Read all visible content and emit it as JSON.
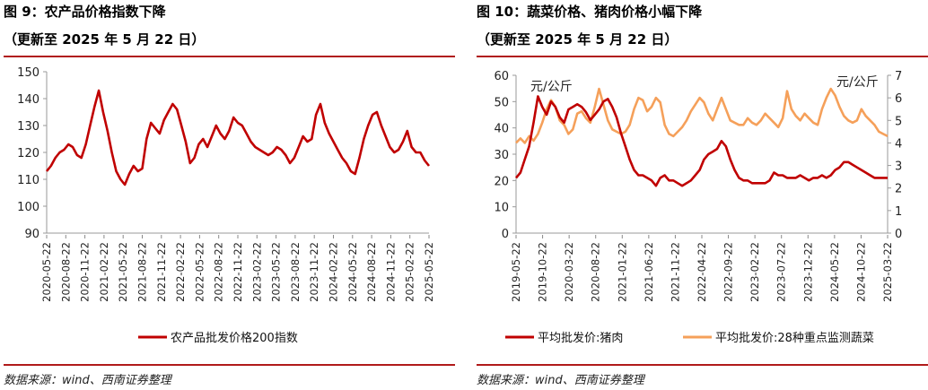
{
  "left": {
    "title": "图 9：农产品价格指数下降",
    "subtitle": "（更新至 2025 年 5 月 22 日）",
    "source": "数据来源：wind、西南证券整理",
    "chart_data": {
      "type": "line",
      "title": "农产品价格指数下降",
      "ylim": [
        90,
        150
      ],
      "yticks": [
        "150",
        "140",
        "130",
        "120",
        "110",
        "100",
        "90"
      ],
      "x_tick_labels": [
        "2020-05-22",
        "2020-08-22",
        "2020-11-22",
        "2021-02-22",
        "2021-05-22",
        "2021-08-22",
        "2021-11-22",
        "2022-02-22",
        "2022-05-22",
        "2022-08-22",
        "2022-11-22",
        "2023-02-22",
        "2023-05-22",
        "2023-08-22",
        "2023-11-22",
        "2024-02-22",
        "2024-05-22",
        "2024-08-22",
        "2024-11-22",
        "2025-02-22",
        "2025-05-22"
      ],
      "series": [
        {
          "name": "农产品批发价格200指数",
          "color": "#c00000",
          "values": [
            113,
            115,
            118,
            120,
            121,
            123,
            122,
            119,
            118,
            123,
            130,
            137,
            143,
            135,
            128,
            120,
            113,
            110,
            108,
            112,
            115,
            113,
            114,
            125,
            131,
            129,
            127,
            132,
            135,
            138,
            136,
            130,
            124,
            116,
            118,
            123,
            125,
            122,
            126,
            130,
            127,
            125,
            128,
            133,
            131,
            130,
            127,
            124,
            122,
            121,
            120,
            119,
            120,
            122,
            121,
            119,
            116,
            118,
            122,
            126,
            124,
            125,
            134,
            138,
            131,
            127,
            124,
            121,
            118,
            116,
            113,
            112,
            118,
            125,
            130,
            134,
            135,
            130,
            126,
            122,
            120,
            121,
            124,
            128,
            122,
            120,
            120,
            117,
            115
          ]
        }
      ],
      "legend": [
        "农产品批发价格200指数"
      ]
    }
  },
  "right": {
    "title": "图 10：蔬菜价格、猪肉价格小幅下降",
    "subtitle": "（更新至 2025 年 5 月 22 日）",
    "source": "数据来源：wind、西南证券整理",
    "unit_left": "元/公斤",
    "unit_right": "元/公斤",
    "chart_data": {
      "type": "line",
      "title": "蔬菜价格、猪肉价格小幅下降",
      "ylim_left": [
        0,
        60
      ],
      "ylim_right": [
        0,
        7
      ],
      "yticks_left": [
        "60",
        "50",
        "40",
        "30",
        "20",
        "10",
        "0"
      ],
      "yticks_right": [
        "7",
        "6",
        "5",
        "4",
        "3",
        "2",
        "1",
        "0"
      ],
      "x_tick_labels": [
        "2019-05-22",
        "2019-10-22",
        "2020-03-22",
        "2020-08-22",
        "2021-01-22",
        "2021-06-22",
        "2021-11-22",
        "2022-04-22",
        "2022-09-22",
        "2023-02-22",
        "2023-07-22",
        "2023-12-22",
        "2024-05-22",
        "2024-10-22",
        "2025-03-22"
      ],
      "series": [
        {
          "name": "平均批发价:猪肉",
          "axis": "left",
          "color": "#c00000",
          "values": [
            21,
            23,
            28,
            33,
            42,
            52,
            48,
            45,
            50,
            48,
            44,
            42,
            47,
            48,
            49,
            48,
            46,
            43,
            45,
            47,
            50,
            51,
            48,
            44,
            38,
            33,
            28,
            24,
            22,
            22,
            21,
            20,
            18,
            21,
            22,
            20,
            20,
            19,
            18,
            19,
            20,
            22,
            24,
            28,
            30,
            31,
            32,
            35,
            33,
            28,
            24,
            21,
            20,
            20,
            19,
            19,
            19,
            19,
            20,
            23,
            22,
            22,
            21,
            21,
            21,
            22,
            21,
            20,
            21,
            21,
            22,
            21,
            22,
            24,
            25,
            27,
            27,
            26,
            25,
            24,
            23,
            22,
            21,
            21,
            21,
            21
          ]
        },
        {
          "name": "平均批发价:28种重点监测蔬菜",
          "axis": "right",
          "color": "#f5a05a",
          "values": [
            4.0,
            4.2,
            4.0,
            4.3,
            4.1,
            4.4,
            4.9,
            5.5,
            5.9,
            5.6,
            5.0,
            4.8,
            4.4,
            4.6,
            5.3,
            5.4,
            5.1,
            4.9,
            5.6,
            6.4,
            5.7,
            5.0,
            4.6,
            4.5,
            4.4,
            4.5,
            4.8,
            5.5,
            6.0,
            5.9,
            5.4,
            5.6,
            6.0,
            5.8,
            4.8,
            4.4,
            4.3,
            4.5,
            4.7,
            5.0,
            5.4,
            5.7,
            6.0,
            5.8,
            5.3,
            5.0,
            5.5,
            6.0,
            5.5,
            5.0,
            4.9,
            4.8,
            4.8,
            5.1,
            4.9,
            4.8,
            5.0,
            5.3,
            5.1,
            4.9,
            4.7,
            5.1,
            6.3,
            5.5,
            5.2,
            5.0,
            5.3,
            5.1,
            4.9,
            4.8,
            5.5,
            6.0,
            6.4,
            6.1,
            5.6,
            5.2,
            5.0,
            4.9,
            5.0,
            5.5,
            5.2,
            5.0,
            4.8,
            4.5,
            4.4,
            4.3
          ]
        }
      ],
      "legend": [
        "平均批发价:猪肉",
        "平均批发价:28种重点监测蔬菜"
      ]
    }
  }
}
